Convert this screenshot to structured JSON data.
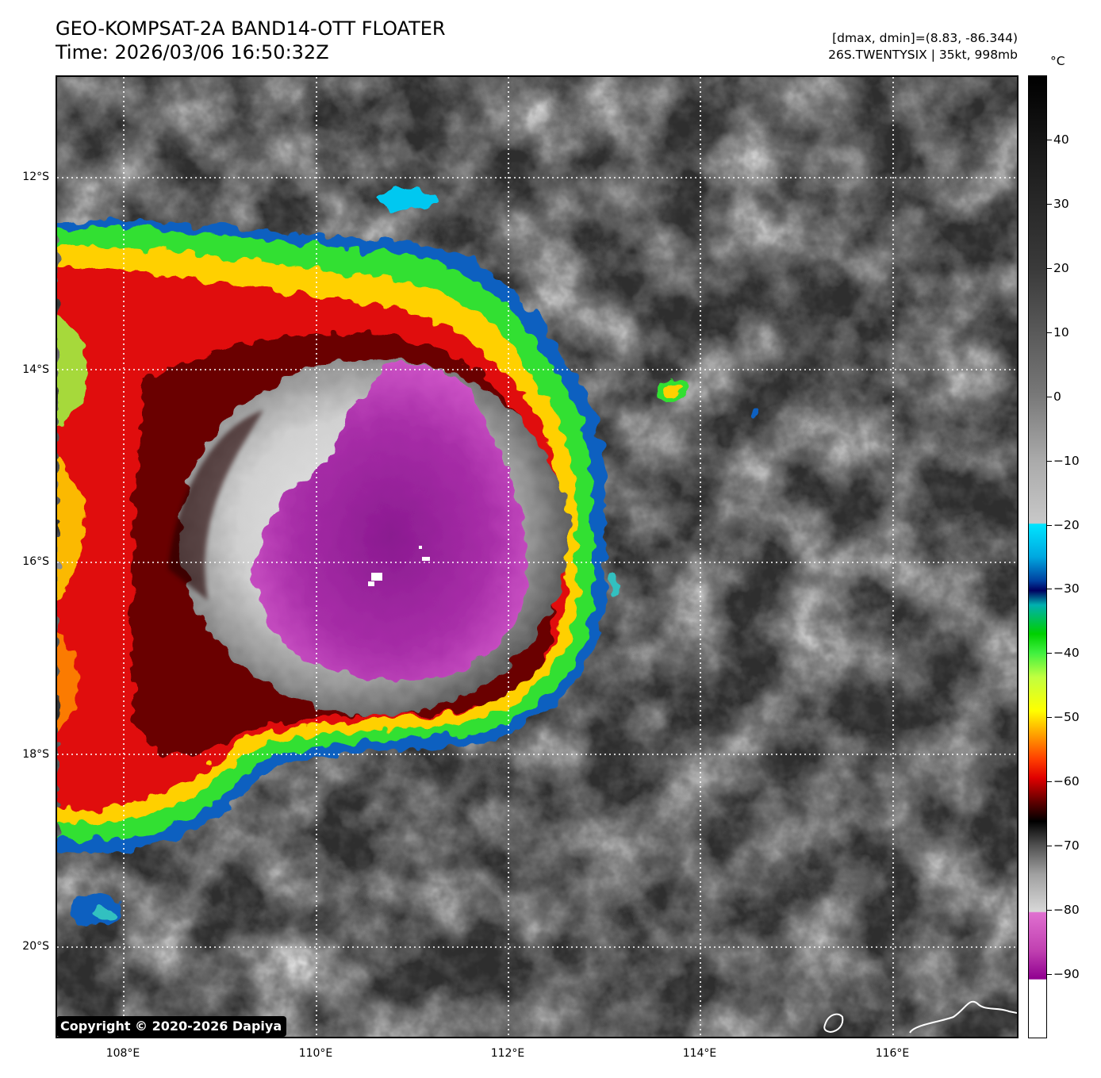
{
  "header": {
    "title_line1": "GEO-KOMPSAT-2A BAND14-OTT FLOATER",
    "title_line2": "Time: 2026/03/06 16:50:32Z",
    "info_line1": "[dmax, dmin]=(8.83, -86.344)",
    "info_line2": "26S.TWENTYSIX | 35kt, 998mb"
  },
  "map": {
    "lon_labels": [
      "108°E",
      "110°E",
      "112°E",
      "114°E",
      "116°E"
    ],
    "lat_labels": [
      "12°S",
      "14°S",
      "16°S",
      "18°S",
      "20°S"
    ],
    "gridlines": "dotted white",
    "storm_name": "26S.TWENTYSIX"
  },
  "colorbar": {
    "unit": "°C",
    "ticks": [
      "40",
      "30",
      "20",
      "10",
      "0",
      "−10",
      "−20",
      "−30",
      "−40",
      "−50",
      "−60",
      "−70",
      "−80",
      "−90"
    ],
    "range": [
      -100,
      50
    ],
    "colors": {
      "warm": "#000000",
      "cyan": "#00e5ff",
      "green": "#00d000",
      "yellow": "#ffff00",
      "red": "#e00000",
      "magenta": "#c040b0",
      "cold": "#ffffff"
    }
  },
  "copyright": "Copyright © 2020-2026 Dapiya"
}
